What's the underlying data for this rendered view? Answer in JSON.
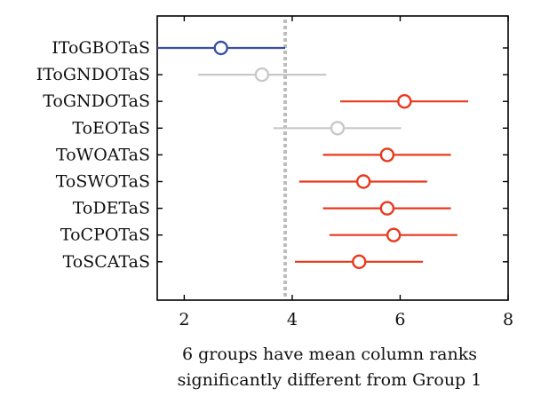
{
  "chart_data": {
    "type": "scatter",
    "subtype": "multiple-comparison-intervals",
    "title": "",
    "xlabel": "6 groups have mean column ranks",
    "xlabel_line2": "significantly different from Group 1",
    "ylabel": "",
    "xlim": [
      1.5,
      8
    ],
    "xticks": [
      2,
      4,
      6,
      8
    ],
    "grid": false,
    "reference_line_x": 3.87,
    "colors": {
      "selected": "#3a4fa8",
      "significant": "#e8391d",
      "not_significant": "#c8c8c8",
      "reference": "#bdbdbd",
      "axis": "#000000"
    },
    "groups": [
      {
        "label": "IToGBOTaS",
        "mean": 2.68,
        "low": 1.5,
        "high": 3.87,
        "status": "selected"
      },
      {
        "label": "IToGNDOTaS",
        "mean": 3.44,
        "low": 2.26,
        "high": 4.63,
        "status": "not_significant"
      },
      {
        "label": "ToGNDOTaS",
        "mean": 6.08,
        "low": 4.89,
        "high": 7.26,
        "status": "significant"
      },
      {
        "label": "ToEOTaS",
        "mean": 4.84,
        "low": 3.65,
        "high": 6.02,
        "status": "not_significant"
      },
      {
        "label": "ToWOATaS",
        "mean": 5.76,
        "low": 4.57,
        "high": 6.94,
        "status": "significant"
      },
      {
        "label": "ToSWOTaS",
        "mean": 5.32,
        "low": 4.13,
        "high": 6.5,
        "status": "significant"
      },
      {
        "label": "ToDETaS",
        "mean": 5.76,
        "low": 4.57,
        "high": 6.94,
        "status": "significant"
      },
      {
        "label": "ToCPOTaS",
        "mean": 5.88,
        "low": 4.69,
        "high": 7.06,
        "status": "significant"
      },
      {
        "label": "ToSCATaS",
        "mean": 5.24,
        "low": 4.05,
        "high": 6.42,
        "status": "significant"
      }
    ]
  }
}
